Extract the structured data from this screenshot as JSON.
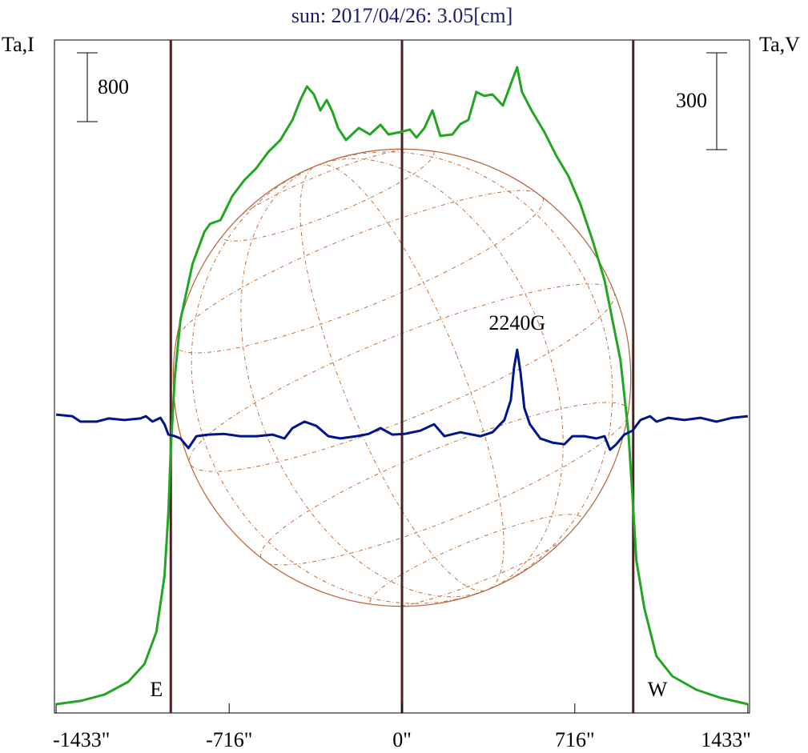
{
  "chart_data": {
    "type": "line",
    "title": "sun: 2017/04/26: 3.05[cm]",
    "y_label": "Ta,I",
    "y2_label": "Ta,V",
    "xlim": [
      -1440,
      1440
    ],
    "ylim": [
      -56,
      7765
    ],
    "y2lim": [
      -915,
      1171
    ],
    "xticks": [
      {
        "value": -1433,
        "label": "-1433\""
      },
      {
        "value": -716,
        "label": "-716\""
      },
      {
        "value": 0,
        "label": "0\""
      },
      {
        "value": 716,
        "label": "716\""
      },
      {
        "value": 1433,
        "label": "1433\""
      }
    ],
    "series": [
      {
        "name": "Ta,I",
        "color": "#22a622",
        "x": [
          -1433,
          -1332,
          -1233,
          -1134,
          -1067,
          -1018,
          -984,
          -968,
          -958,
          -941,
          -918,
          -868,
          -819,
          -796,
          -752,
          -703,
          -653,
          -603,
          -554,
          -504,
          -454,
          -421,
          -394,
          -365,
          -338,
          -312,
          -288,
          -265,
          -232,
          -179,
          -133,
          -89,
          -56,
          -7,
          33,
          60,
          93,
          126,
          159,
          209,
          242,
          275,
          308,
          341,
          375,
          418,
          451,
          477,
          497,
          540,
          590,
          640,
          689,
          739,
          789,
          839,
          872,
          905,
          938,
          955,
          971,
          1004,
          1054,
          1120,
          1220,
          1319,
          1433
        ],
        "values": [
          46,
          84,
          158,
          307,
          512,
          884,
          1535,
          2279,
          3023,
          3860,
          4511,
          5162,
          5534,
          5627,
          5673,
          5952,
          6138,
          6278,
          6464,
          6603,
          6836,
          7068,
          7226,
          7133,
          6947,
          7068,
          6929,
          6743,
          6603,
          6743,
          6668,
          6780,
          6668,
          6696,
          6724,
          6631,
          6743,
          6947,
          6650,
          6668,
          6789,
          6836,
          7161,
          7115,
          7133,
          7003,
          7254,
          7449,
          7161,
          6929,
          6696,
          6417,
          6185,
          5859,
          5441,
          4976,
          4511,
          4046,
          3209,
          2465,
          1721,
          1163,
          605,
          372,
          214,
          121,
          46
        ]
      },
      {
        "name": "Ta,V",
        "color": "#00148c",
        "axis": "y2",
        "x": [
          -1433,
          -1366,
          -1332,
          -1266,
          -1216,
          -1150,
          -1084,
          -1061,
          -1034,
          -1001,
          -984,
          -968,
          -941,
          -918,
          -885,
          -852,
          -802,
          -736,
          -670,
          -603,
          -537,
          -487,
          -454,
          -404,
          -355,
          -305,
          -255,
          -189,
          -139,
          -89,
          -40,
          10,
          76,
          133,
          176,
          242,
          325,
          375,
          424,
          451,
          464,
          477,
          491,
          507,
          530,
          573,
          623,
          673,
          706,
          756,
          805,
          839,
          862,
          888,
          921,
          955,
          988,
          1028,
          1054,
          1104,
          1170,
          1236,
          1303,
          1369,
          1433
        ],
        "values": [
          10,
          5,
          -12,
          -12,
          -2,
          -7,
          -2,
          5,
          -12,
          0,
          -20,
          -52,
          -57,
          -64,
          -94,
          -57,
          -52,
          -50,
          -57,
          -57,
          -52,
          -64,
          -32,
          -12,
          -25,
          -57,
          -64,
          -57,
          -50,
          -32,
          -52,
          -50,
          -40,
          -20,
          -57,
          -45,
          -57,
          -45,
          -7,
          55,
          154,
          211,
          141,
          30,
          -20,
          -64,
          -77,
          -82,
          -57,
          -57,
          -64,
          -57,
          -99,
          -82,
          -52,
          -40,
          -7,
          5,
          -12,
          0,
          -7,
          0,
          -12,
          0,
          5
        ]
      }
    ],
    "scale_bars": [
      {
        "value": 800,
        "axis": "y"
      },
      {
        "value": 300,
        "axis": "y2"
      }
    ],
    "markers": [
      {
        "x": -958,
        "label": "E"
      },
      {
        "x": 0
      },
      {
        "x": 958,
        "label": "W"
      }
    ],
    "disk_radius": 948,
    "annotations": [
      {
        "text": "2240G",
        "x": 477
      }
    ]
  }
}
